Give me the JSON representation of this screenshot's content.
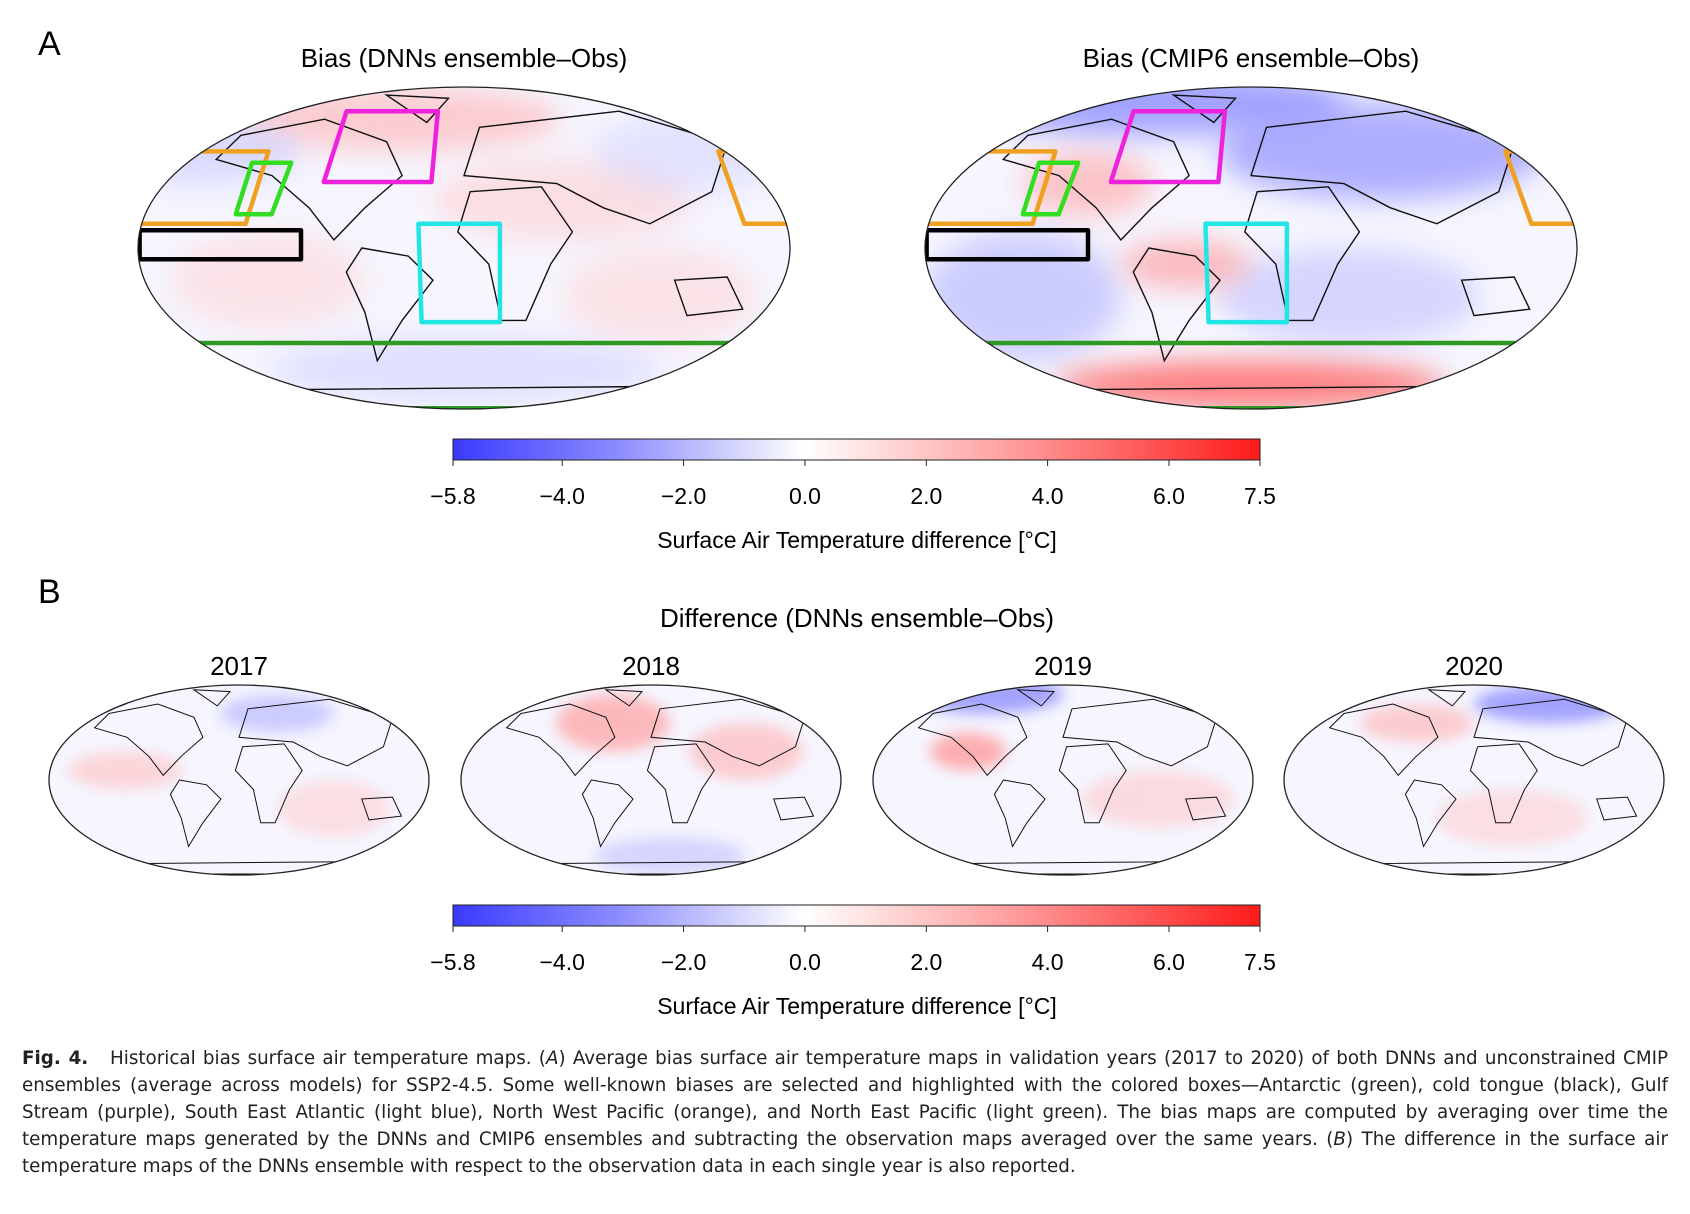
{
  "panel_a": {
    "label": "A",
    "maps": [
      {
        "title": "Bias (DNNs ensemble–Obs)"
      },
      {
        "title": "Bias (CMIP6 ensemble–Obs)"
      }
    ],
    "colorbar": {
      "ticks": [
        "−5.8",
        "−4.0",
        "−2.0",
        "0.0",
        "2.0",
        "4.0",
        "6.0",
        "7.5"
      ],
      "label": "Surface Air Temperature difference [°C]"
    }
  },
  "panel_b": {
    "label": "B",
    "title": "Difference (DNNs ensemble–Obs)",
    "years": [
      "2017",
      "2018",
      "2019",
      "2020"
    ],
    "colorbar": {
      "ticks": [
        "−5.8",
        "−4.0",
        "−2.0",
        "0.0",
        "2.0",
        "4.0",
        "6.0",
        "7.5"
      ],
      "label": "Surface Air Temperature difference [°C]"
    }
  },
  "caption": {
    "label": "Fig. 4.",
    "parts": [
      "Historical bias surface air temperature maps. (",
      "A",
      ") Average bias surface air temperature maps in validation years (2017 to 2020) of both DNNs and unconstrained CMIP ensembles (average across models) for SSP2-4.5. Some well-known biases are selected and highlighted with the colored boxes—Antarctic (green), cold tongue (black), Gulf Stream (purple), South East Atlantic (light blue), North West Pacific (orange), and North East Pacific (light green). The bias maps are computed by averaging over time the temperature maps generated by the DNNs and CMIP6 ensembles and subtracting the observation maps averaged over the same years. (",
      "B",
      ") The difference in the surface air temperature maps of the DNNs ensemble with respect to the observation data in each single year is also reported."
    ]
  }
}
